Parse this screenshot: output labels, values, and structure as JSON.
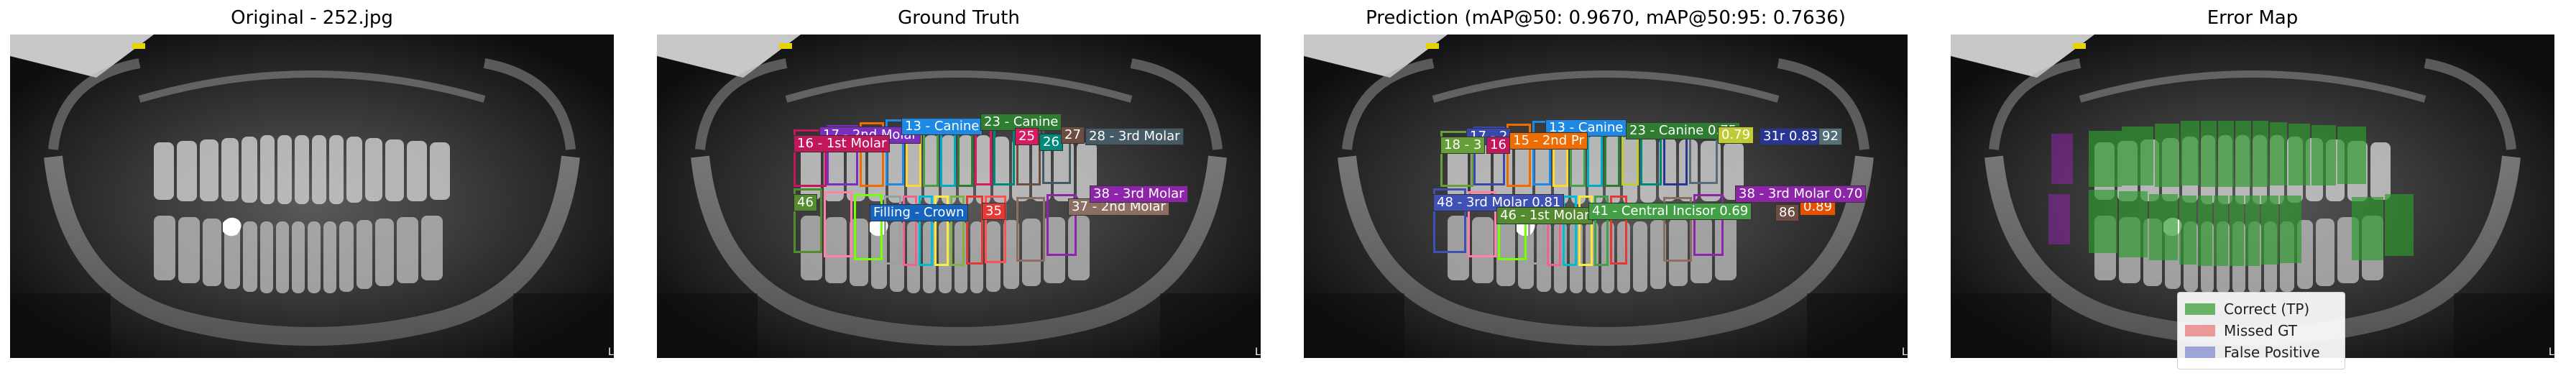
{
  "panels": {
    "original": {
      "title": "Original - 252.jpg"
    },
    "ground_truth": {
      "title": "Ground Truth"
    },
    "prediction": {
      "title": "Prediction (mAP@50: 0.9670, mAP@50:95: 0.7636)"
    },
    "error_map": {
      "title": "Error Map"
    }
  },
  "corner_mark": "L",
  "gt_labels": [
    {
      "text": "17 - 2nd Molar",
      "color": "#7b2fbe"
    },
    {
      "text": "16 - 1st Molar",
      "color": "#c2185b"
    },
    {
      "text": "13 - Canine",
      "color": "#1e88e5"
    },
    {
      "text": "23 - Canine",
      "color": "#2e7d32"
    },
    {
      "text": "28 - 3rd Molar",
      "color": "#455a64"
    },
    {
      "text": "25",
      "color": "#d81b60"
    },
    {
      "text": "26",
      "color": "#00897b"
    },
    {
      "text": "27",
      "color": "#6d4c41"
    },
    {
      "text": "46",
      "color": "#558b2f"
    },
    {
      "text": "Filling - Crown",
      "color": "#1565c0"
    },
    {
      "text": "35",
      "color": "#e53935"
    },
    {
      "text": "37 - 2nd Molar",
      "color": "#8d6e63"
    },
    {
      "text": "38 - 3rd Molar",
      "color": "#8e24aa"
    }
  ],
  "pred_labels": [
    {
      "text": "17 - 2",
      "color": "#3949ab"
    },
    {
      "text": "13 - Canine",
      "color": "#1e88e5"
    },
    {
      "text": "23 - Canine 0.75",
      "color": "#2e7d32"
    },
    {
      "text": "0.79",
      "color": "#c0ca33"
    },
    {
      "text": "31r 0.83",
      "color": "#283593"
    },
    {
      "text": "92",
      "color": "#546e7a"
    },
    {
      "text": "18 - 3",
      "color": "#689f38"
    },
    {
      "text": "16",
      "color": "#c2185b"
    },
    {
      "text": "15 - 2nd Pr",
      "color": "#ef6c00"
    },
    {
      "text": "48 - 3rd Molar 0.81",
      "color": "#3f51b5"
    },
    {
      "text": "46 - 1st Molar",
      "color": "#558b2f"
    },
    {
      "text": "41 - Central Incisor 0.69",
      "color": "#43a047"
    },
    {
      "text": "86",
      "color": "#6d4c41"
    },
    {
      "text": "0.89",
      "color": "#e65100"
    },
    {
      "text": "38 - 3rd Molar 0.70",
      "color": "#8e24aa"
    }
  ],
  "legend": [
    {
      "label": "Correct (TP)",
      "color": "#2e9a2e"
    },
    {
      "label": "Missed GT",
      "color": "#e57373"
    },
    {
      "label": "False Positive",
      "color": "#7986cb"
    }
  ]
}
